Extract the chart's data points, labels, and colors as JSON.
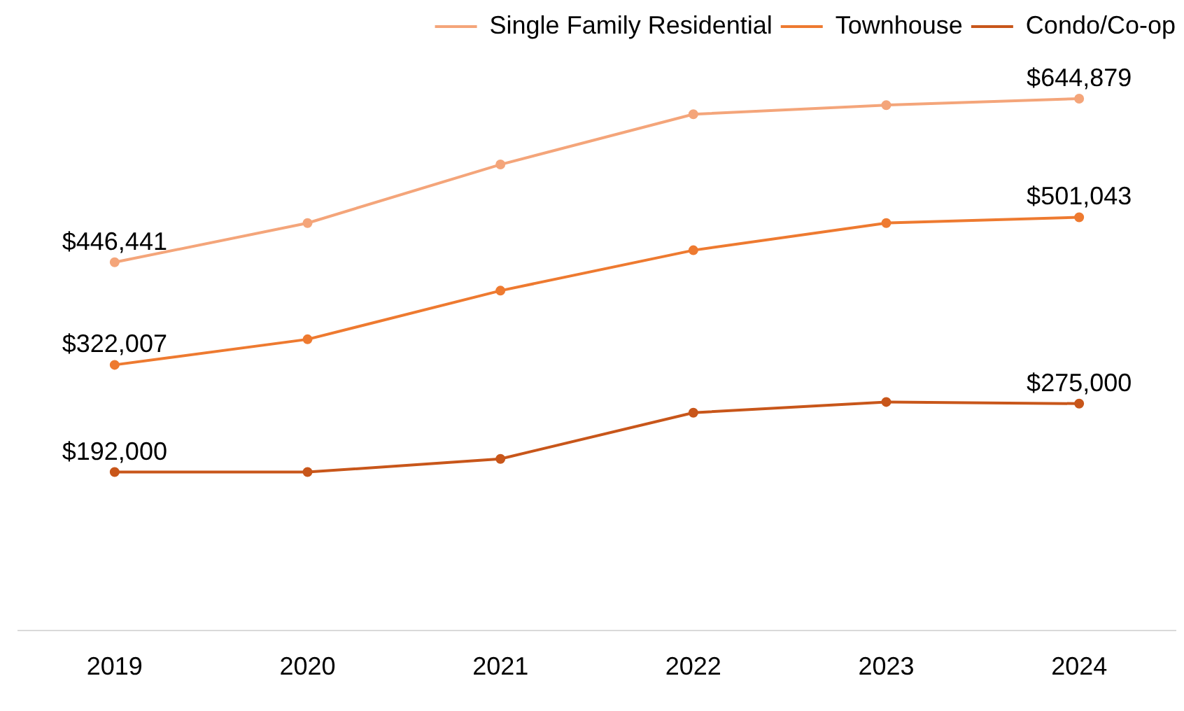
{
  "chart_data": {
    "type": "line",
    "categories": [
      "2019",
      "2020",
      "2021",
      "2022",
      "2023",
      "2024"
    ],
    "series": [
      {
        "name": "Single Family Residential",
        "color": "#f4a57a",
        "values": [
          446441,
          494000,
          565000,
          626000,
          637000,
          644879
        ],
        "value_labels": [
          "$446,441",
          null,
          null,
          null,
          null,
          "$644,879"
        ]
      },
      {
        "name": "Townhouse",
        "color": "#ee7a30",
        "values": [
          322007,
          353000,
          412000,
          461000,
          494000,
          501043
        ],
        "value_labels": [
          "$322,007",
          null,
          null,
          null,
          null,
          "$501,043"
        ]
      },
      {
        "name": "Condo/Co-op",
        "color": "#c8561a",
        "values": [
          192000,
          192000,
          208000,
          264000,
          277000,
          275000
        ],
        "value_labels": [
          "$192,000",
          null,
          null,
          null,
          null,
          "$275,000"
        ]
      }
    ],
    "tick_labels": "x",
    "grid": false,
    "legend": "top right",
    "marker": "circle",
    "line_style": "solid"
  }
}
